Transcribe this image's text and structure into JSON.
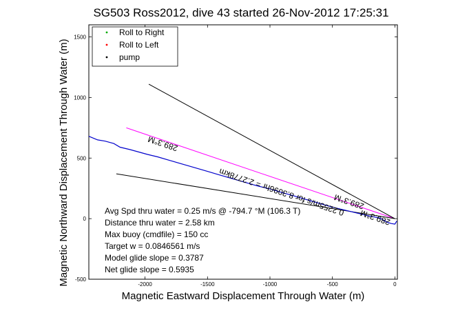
{
  "chart_data": {
    "type": "line",
    "title": "SG503 Ross2012, dive 43 started 26-Nov-2012 17:25:31",
    "xlabel": "Magnetic Eastward Displacement Through Water (m)",
    "ylabel": "Magnetic Northward Displacement Through Water (m)",
    "xlim": [
      -2450,
      20
    ],
    "ylim": [
      -500,
      1600
    ],
    "xticks": [
      -2000,
      -1500,
      -1000,
      -500,
      0
    ],
    "xtick_labels": [
      "-2000",
      "-1500",
      "-1000",
      "-500",
      "0"
    ],
    "yticks": [
      -500,
      0,
      500,
      1000,
      1500
    ],
    "ytick_labels": [
      "-500",
      "0",
      "500",
      "1000",
      "1500"
    ],
    "legend": {
      "placement": "top-left",
      "entries": [
        {
          "label": "Roll to Right",
          "color": "#00aa00",
          "marker": "dot"
        },
        {
          "label": "Roll to Left",
          "color": "#ff0000",
          "marker": "dot"
        },
        {
          "label": "pump",
          "color": "#000000",
          "marker": "dot"
        }
      ]
    },
    "track": {
      "color": "#0000cc",
      "x": [
        -2450,
        -2380,
        -2320,
        -2250,
        -2200,
        -2120,
        -2050,
        -1980,
        -1900,
        -1800,
        -1700,
        -1600,
        -1500,
        -1400,
        -1300,
        -1200,
        -1100,
        -1000,
        -900,
        -800,
        -700,
        -600,
        -500,
        -400,
        -300,
        -200,
        -120,
        -60,
        -30,
        0,
        15
      ],
      "y": [
        680,
        650,
        640,
        620,
        590,
        570,
        550,
        530,
        510,
        480,
        450,
        420,
        390,
        360,
        330,
        300,
        270,
        245,
        215,
        185,
        155,
        125,
        95,
        70,
        45,
        20,
        5,
        -30,
        -40,
        -45,
        -20
      ]
    },
    "lines": [
      {
        "name": "center",
        "color": "#ff00ff",
        "x": [
          -2150,
          0
        ],
        "y": [
          750,
          0
        ]
      },
      {
        "name": "upper",
        "color": "#000000",
        "x": [
          -1970,
          0
        ],
        "y": [
          1110,
          0
        ]
      },
      {
        "name": "lower",
        "color": "#000000",
        "x": [
          -2230,
          0
        ],
        "y": [
          370,
          0
        ]
      }
    ],
    "rotated_labels": [
      {
        "text": "289.3°M",
        "x": -1850,
        "y": 640
      },
      {
        "text": "289.3°M",
        "x": -360,
        "y": 160
      },
      {
        "text": "0.2255m/s for 8.3096hr = 2.2778km",
        "x": -900,
        "y": 240
      },
      {
        "text": "289.3°M",
        "x": -150,
        "y": 30
      }
    ],
    "annotations": [
      "Avg Spd thru water =  0.25 m/s @ -794.7   °M (106.3   T)",
      "Distance thru water =  2.58 km",
      "Max buoy (cmdfile) = 150 cc",
      "Target w = 0.0846561 m/s",
      "Model glide slope = 0.3787",
      "Net glide slope = 0.5935"
    ]
  }
}
